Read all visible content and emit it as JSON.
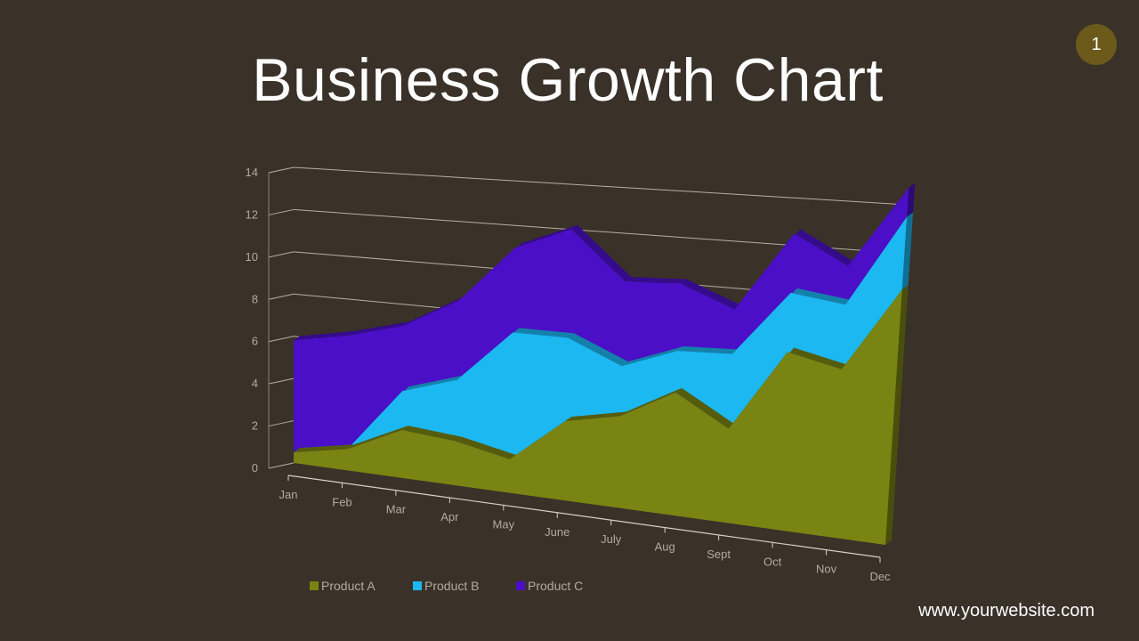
{
  "slide": {
    "title": "Business Growth Chart",
    "page_number": "1",
    "website": "www.yourwebsite.com",
    "background_color": "#3a3129",
    "badge_color": "#6b5a1a"
  },
  "chart_data": {
    "type": "area",
    "stacked": true,
    "perspective": "3d",
    "categories": [
      "Jan",
      "Feb",
      "Mar",
      "Apr",
      "May",
      "June",
      "July",
      "Aug",
      "Sept",
      "Oct",
      "Nov",
      "Dec"
    ],
    "series": [
      {
        "name": "Product A",
        "color": "#7a8412",
        "values": [
          0.5,
          1,
          2.2,
          2,
          1.5,
          3.5,
          4,
          5.3,
          4,
          7.5,
          7,
          10.5
        ]
      },
      {
        "name": "Product B",
        "color": "#1bb8f2",
        "values": [
          0,
          0,
          1.8,
          2.8,
          5.7,
          3.7,
          2.2,
          1.8,
          3.2,
          2.5,
          2.7,
          3
        ]
      },
      {
        "name": "Product C",
        "color": "#4b0fc8",
        "values": [
          5.3,
          5.3,
          3,
          3.6,
          3.8,
          4.8,
          3.7,
          2.9,
          1.9,
          2.5,
          1.6,
          1.2
        ]
      }
    ],
    "y_ticks": [
      "0",
      "2",
      "4",
      "6",
      "8",
      "10",
      "12",
      "14"
    ],
    "ylim": [
      0,
      14
    ],
    "grid": true,
    "legend_position": "bottom-left"
  }
}
